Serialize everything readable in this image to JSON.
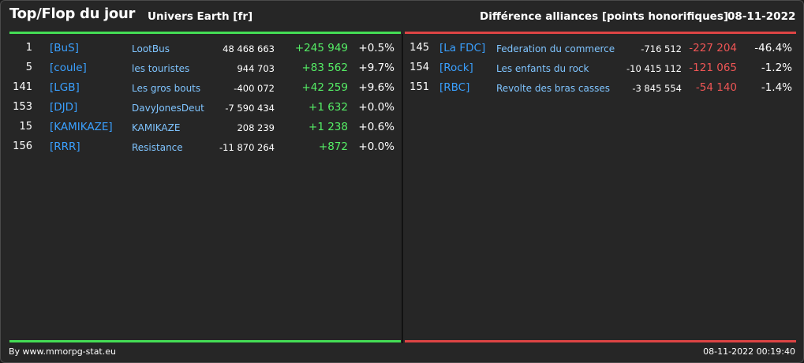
{
  "header": {
    "title": "Top/Flop du jour",
    "subtitle": "Univers Earth [fr]",
    "right_title": "Différence alliances [points honorifiques]",
    "date": "08-11-2022"
  },
  "colors": {
    "top_accent": "#44dd55",
    "flop_accent": "#dd4444",
    "tag_color": "#3aa0ff",
    "name_color": "#7fc4ff"
  },
  "top": [
    {
      "rank": "1",
      "tag": "[BuS]",
      "name": "LootBus",
      "points": "48 468 663",
      "diff": "+245 949",
      "pct": "+0.5%"
    },
    {
      "rank": "5",
      "tag": "[coule]",
      "name": "les touristes",
      "points": "944 703",
      "diff": "+83 562",
      "pct": "+9.7%"
    },
    {
      "rank": "141",
      "tag": "[LGB]",
      "name": "Les gros bouts",
      "points": "-400 072",
      "diff": "+42 259",
      "pct": "+9.6%"
    },
    {
      "rank": "153",
      "tag": "[DJD]",
      "name": "DavyJonesDeut",
      "points": "-7 590 434",
      "diff": "+1 632",
      "pct": "+0.0%"
    },
    {
      "rank": "15",
      "tag": "[KAMIKAZE]",
      "name": "KAMIKAZE",
      "points": "208 239",
      "diff": "+1 238",
      "pct": "+0.6%"
    },
    {
      "rank": "156",
      "tag": "[RRR]",
      "name": "Resistance",
      "points": "-11 870 264",
      "diff": "+872",
      "pct": "+0.0%"
    }
  ],
  "flop": [
    {
      "rank": "145",
      "tag": "[La FDC]",
      "name": "Federation du commerce",
      "points": "-716 512",
      "diff": "-227 204",
      "pct": "-46.4%"
    },
    {
      "rank": "154",
      "tag": "[Rock]",
      "name": "Les enfants du rock",
      "points": "-10 415 112",
      "diff": "-121 065",
      "pct": "-1.2%"
    },
    {
      "rank": "151",
      "tag": "[RBC]",
      "name": "Revolte des bras casses",
      "points": "-3 845 554",
      "diff": "-54 140",
      "pct": "-1.4%"
    }
  ],
  "footer": {
    "source": "By www.mmorpg-stat.eu",
    "timestamp": "08-11-2022 00:19:40"
  }
}
